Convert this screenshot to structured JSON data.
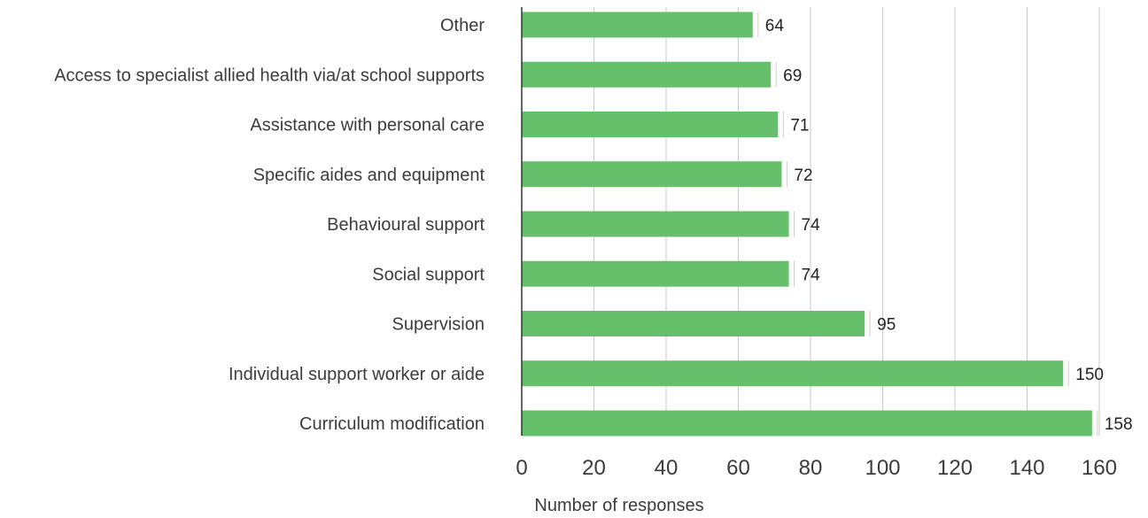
{
  "chart_data": {
    "type": "bar",
    "orientation": "horizontal",
    "categories": [
      "Other",
      "Access to specialist allied health via/at school supports",
      "Assistance with personal care",
      "Specific aides and equipment",
      "Behavioural support",
      "Social support",
      "Supervision",
      "Individual support worker or aide",
      "Curriculum modification"
    ],
    "values": [
      64,
      69,
      71,
      72,
      74,
      74,
      95,
      150,
      158
    ],
    "xlabel": "Number of responses",
    "ylabel": "",
    "xlim": [
      0,
      160
    ],
    "xticks": [
      0,
      20,
      40,
      60,
      80,
      100,
      120,
      140,
      160
    ],
    "grid": "vertical",
    "legend": "none",
    "bar_color": "#66bf6b"
  }
}
